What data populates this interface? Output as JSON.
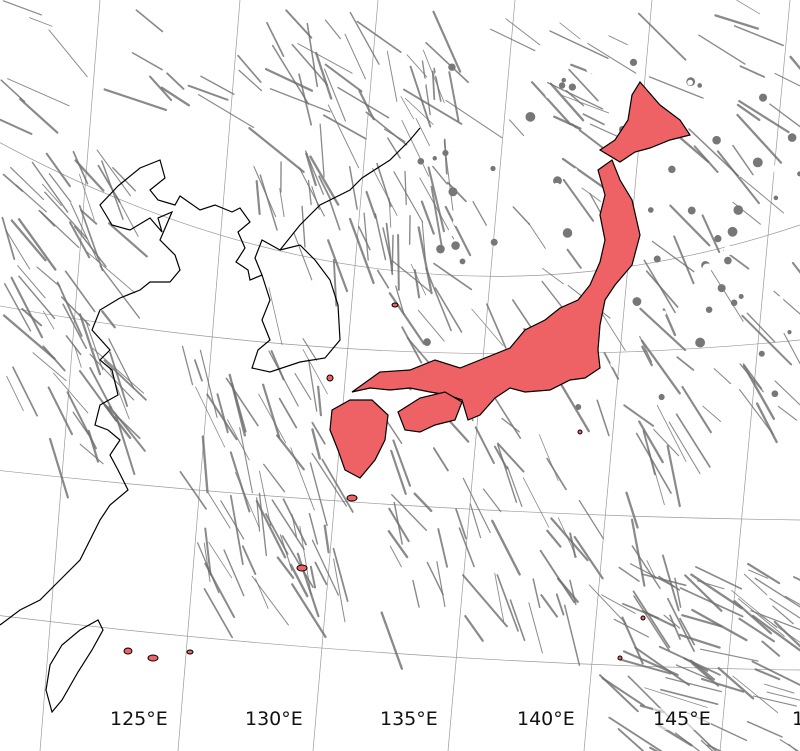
{
  "map": {
    "projection": "conic",
    "highlight_region": "Japan",
    "highlight_color": "#ee6266",
    "streak_color": "#6e6e6e",
    "grid_color": "#9a9a9a",
    "coast_color": "#000000",
    "longitude_labels": [
      "125°E",
      "130°E",
      "135°E",
      "140°E",
      "145°E",
      "1"
    ]
  }
}
